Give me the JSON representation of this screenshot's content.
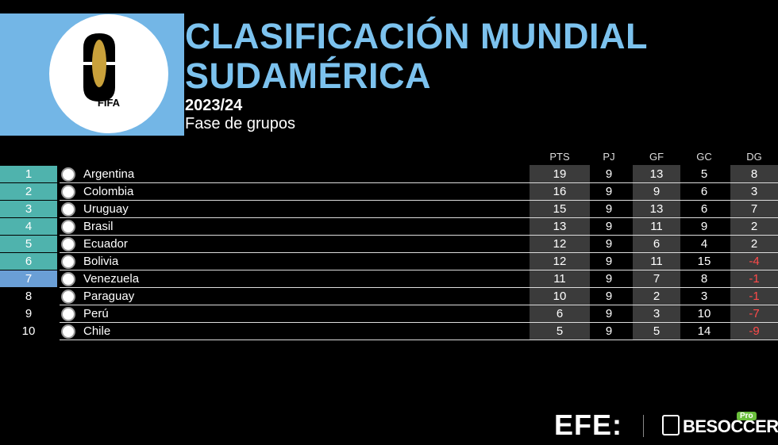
{
  "header": {
    "logo_text": "FIFA",
    "title_lines": [
      "CLASIFICACIÓN MUNDIAL",
      "SUDAMÉRICA"
    ],
    "season": "2023/24",
    "phase": "Fase de grupos"
  },
  "table": {
    "columns": [
      "PTS",
      "PJ",
      "GF",
      "GC",
      "DG"
    ],
    "rows": [
      [
        1,
        "Argentina",
        19,
        9,
        13,
        5,
        8
      ],
      [
        2,
        "Colombia",
        16,
        9,
        9,
        6,
        3
      ],
      [
        3,
        "Uruguay",
        15,
        9,
        13,
        6,
        7
      ],
      [
        4,
        "Brasil",
        13,
        9,
        11,
        9,
        2
      ],
      [
        5,
        "Ecuador",
        12,
        9,
        6,
        4,
        2
      ],
      [
        6,
        "Bolivia",
        12,
        9,
        11,
        15,
        -4
      ],
      [
        7,
        "Venezuela",
        11,
        9,
        7,
        8,
        -1
      ],
      [
        8,
        "Paraguay",
        10,
        9,
        2,
        3,
        -1
      ],
      [
        9,
        "Perú",
        6,
        9,
        3,
        10,
        -7
      ],
      [
        10,
        "Chile",
        5,
        9,
        5,
        14,
        -9
      ]
    ]
  },
  "footer": {
    "efe": "EFE:",
    "besoccer": "BESOCCER",
    "badge": "Pro"
  }
}
